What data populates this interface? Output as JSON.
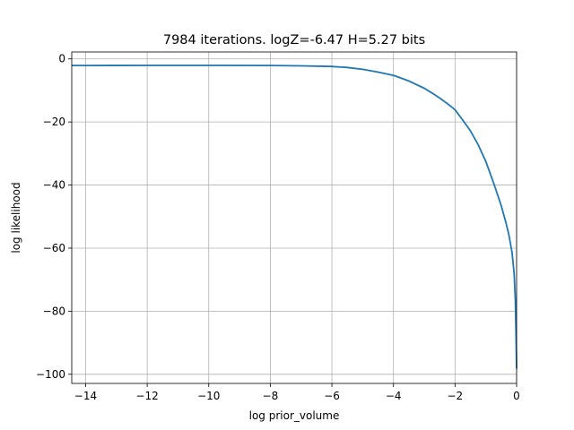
{
  "chart_data": {
    "type": "line",
    "title": "7984 iterations. logZ=-6.47 H=5.27 bits",
    "xlabel": "log prior_volume",
    "ylabel": "log likelihood",
    "xlim": [
      -14.45,
      0.0
    ],
    "ylim": [
      -102.9,
      2.2
    ],
    "grid": true,
    "x_ticks": [
      -14,
      -12,
      -10,
      -8,
      -6,
      -4,
      -2,
      0
    ],
    "x_tick_labels": [
      "−14",
      "−12",
      "−10",
      "−8",
      "−6",
      "−4",
      "−2",
      "0"
    ],
    "y_ticks": [
      0,
      -20,
      -40,
      -60,
      -80,
      -100
    ],
    "y_tick_labels": [
      "0",
      "−20",
      "−40",
      "−60",
      "−80",
      "−100"
    ],
    "line_color": "#1f77b4",
    "series": [
      {
        "x": [
          -14.45,
          -14.0,
          -12.0,
          -10.0,
          -8.0,
          -7.0,
          -6.0,
          -5.5,
          -5.0,
          -4.5,
          -4.0,
          -3.5,
          -3.0,
          -2.75,
          -2.5,
          -2.25,
          -2.0,
          -1.75,
          -1.5,
          -1.25,
          -1.0,
          -0.75,
          -0.5,
          -0.35,
          -0.25,
          -0.15,
          -0.08,
          -0.04,
          -0.02,
          0.0
        ],
        "y": [
          -2.1,
          -2.1,
          -2.05,
          -2.05,
          -2.1,
          -2.2,
          -2.4,
          -2.7,
          -3.3,
          -4.2,
          -5.2,
          -7.0,
          -9.3,
          -10.8,
          -12.4,
          -14.2,
          -16.1,
          -19.4,
          -22.8,
          -27.2,
          -32.5,
          -39.3,
          -46.5,
          -51.8,
          -55.8,
          -61.4,
          -68.2,
          -76.5,
          -86.0,
          -98.2
        ]
      }
    ]
  }
}
